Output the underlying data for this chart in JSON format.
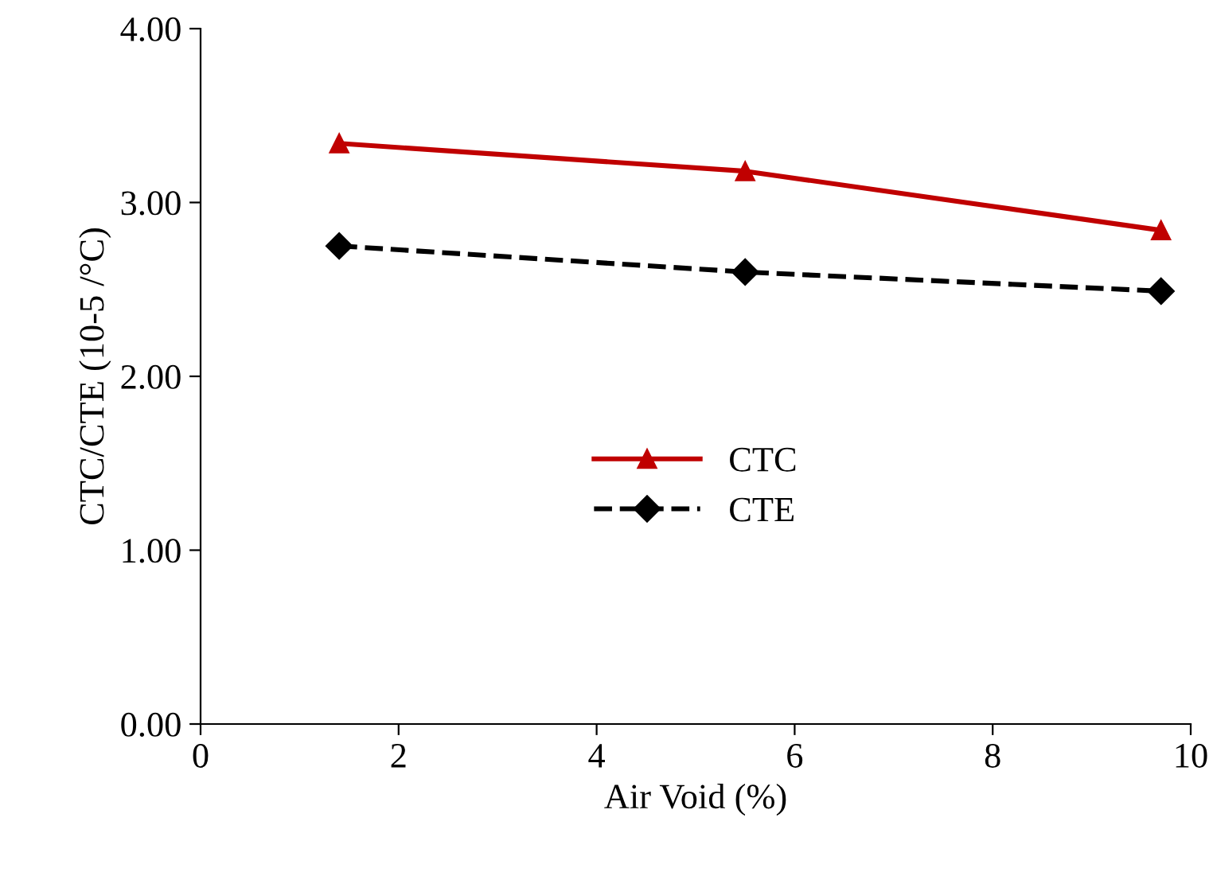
{
  "chart_data": {
    "type": "line",
    "xlabel": "Air Void (%)",
    "ylabel": "CTC/CTE (10-5 /°C)",
    "x": [
      1.4,
      5.5,
      9.7
    ],
    "series": [
      {
        "name": "CTC",
        "color": "#c00000",
        "values": [
          3.34,
          3.18,
          2.84
        ],
        "marker": "triangle",
        "line_style": "solid"
      },
      {
        "name": "CTE",
        "color": "#000000",
        "values": [
          2.75,
          2.6,
          2.49
        ],
        "marker": "diamond",
        "line_style": "dashed"
      }
    ],
    "xlim": [
      0,
      10
    ],
    "xticks": [
      0,
      2,
      4,
      6,
      8,
      10
    ],
    "ylim": [
      0,
      4
    ],
    "yticks": [
      {
        "value": 0,
        "label": "0.00"
      },
      {
        "value": 1,
        "label": "1.00"
      },
      {
        "value": 2,
        "label": "2.00"
      },
      {
        "value": 3,
        "label": "3.00"
      },
      {
        "value": 4,
        "label": "4.00"
      }
    ],
    "grid": false,
    "legend": "center"
  }
}
